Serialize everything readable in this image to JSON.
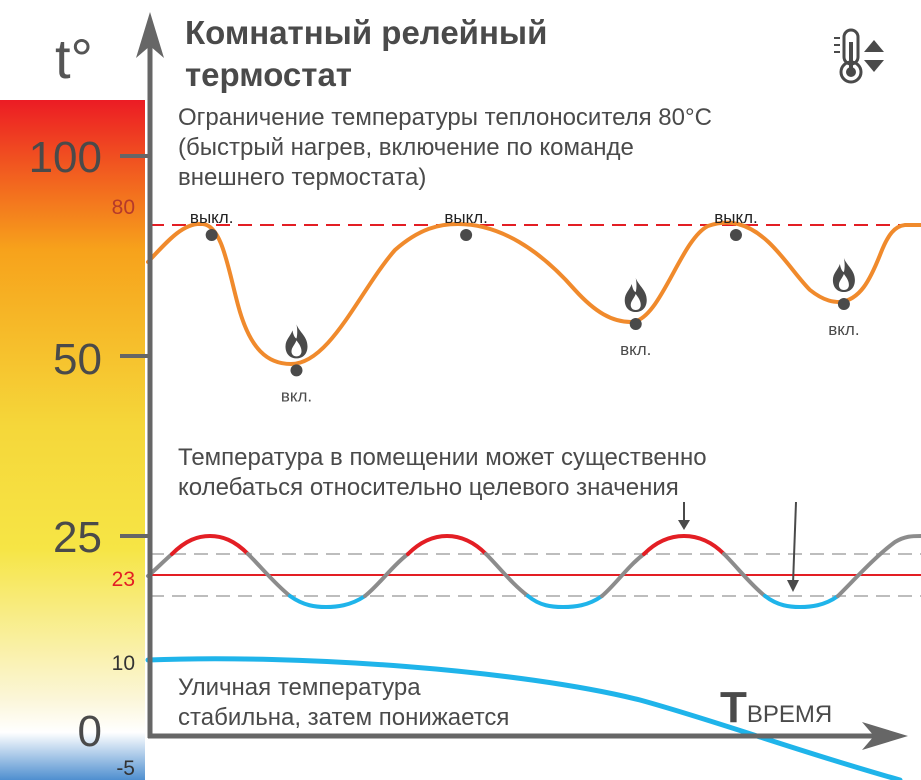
{
  "title": [
    "Комнатный релейный",
    "термостат"
  ],
  "y_axis_label": "t°",
  "x_axis_label": "Tвремя",
  "ticks": {
    "major": [
      {
        "value": 100,
        "label": "100"
      },
      {
        "value": 50,
        "label": "50"
      },
      {
        "value": 25,
        "label": "25"
      },
      {
        "value": 0,
        "label": "0"
      }
    ],
    "minor": [
      {
        "value": 80,
        "label": "80",
        "color": "#b53a2a"
      },
      {
        "value": 23,
        "label": "23",
        "color": "#e31e24"
      },
      {
        "value": 10,
        "label": "10",
        "color": "#333333"
      },
      {
        "value": -5,
        "label": "-5",
        "color": "#333333"
      }
    ]
  },
  "notes": {
    "coolant_limit": [
      "Ограничение температуры теплоносителя 80°С",
      "(быстрый нагрев, включение по команде",
      "внешнего термостата)"
    ],
    "room_temp": [
      "Температура в помещении может существенно",
      "колебаться относительно целевого значения"
    ],
    "outdoor": [
      "Уличная температура",
      "стабильна, затем понижается"
    ]
  },
  "events": {
    "off_label": "выкл.",
    "on_label": "вкл.",
    "off_points": [
      {
        "t": 0.08,
        "temp": 80
      },
      {
        "t": 0.41,
        "temp": 80
      },
      {
        "t": 0.76,
        "temp": 80
      }
    ],
    "on_points": [
      {
        "t": 0.19,
        "temp": 48
      },
      {
        "t": 0.63,
        "temp": 58
      },
      {
        "t": 0.9,
        "temp": 63
      }
    ]
  },
  "colors": {
    "coolant_line": "#f08a2c",
    "limit_line": "#e31e24",
    "setpoint_line": "#e31e24",
    "room_above": "#e31e24",
    "room_below": "#1fb4ea",
    "room_mid": "#8c8c8c",
    "outdoor_line": "#1fb4ea",
    "axis": "#666666",
    "scale_hot": "#ec1c24",
    "scale_warm": "#f7a21b",
    "scale_mild": "#f6e545",
    "scale_cool": "#fbf6d8",
    "scale_cold": "#4f8fd0"
  },
  "icons": [
    "thermometer-icon",
    "flame-icon"
  ]
}
